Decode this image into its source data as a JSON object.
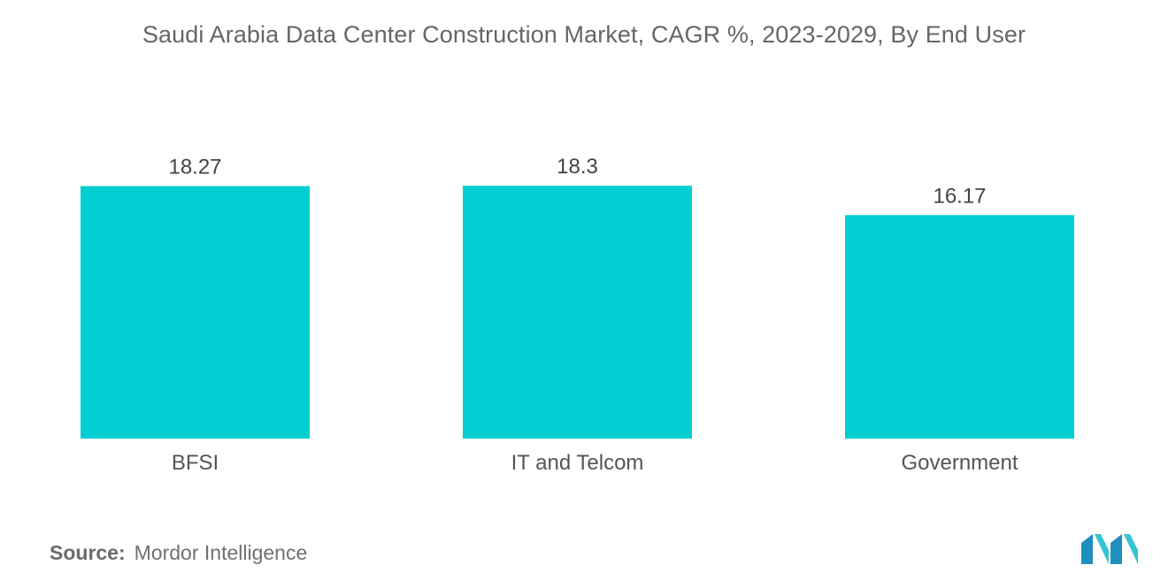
{
  "chart_data": {
    "type": "bar",
    "title": "Saudi Arabia Data Center Construction Market, CAGR %, 2023-2029, By End User",
    "categories": [
      "BFSI",
      "IT and Telcom",
      "Government"
    ],
    "values": [
      18.27,
      18.3,
      16.17
    ],
    "value_labels": [
      "18.27",
      "18.3",
      "16.17"
    ],
    "xlabel": "",
    "ylabel": "",
    "ylim": [
      0,
      18.3
    ],
    "grid": false,
    "legend": "none",
    "bar_color": "#00CED1"
  },
  "source": {
    "label": "Source:",
    "text": "Mordor Intelligence"
  },
  "logo": {
    "icon": "mordor-intelligence-logo-icon",
    "colors": [
      "#1F8FC2",
      "#35C5CF"
    ]
  }
}
